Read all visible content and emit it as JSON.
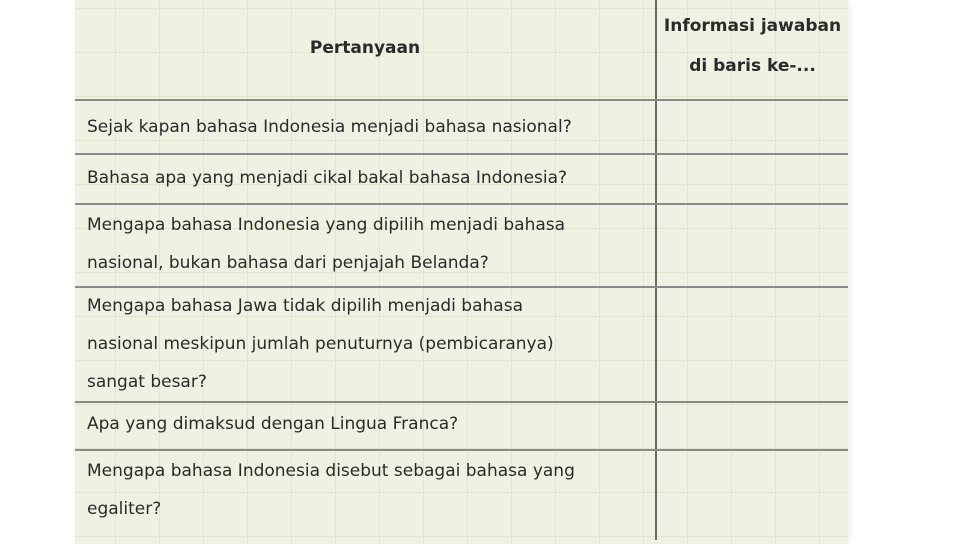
{
  "table": {
    "headers": [
      "Pertanyaan",
      "Informasi jawaban",
      "di baris ke-..."
    ],
    "rows": [
      {
        "lines": [
          "Sejak kapan bahasa Indonesia menjadi bahasa nasional?"
        ]
      },
      {
        "lines": [
          "Bahasa apa yang menjadi cikal bakal bahasa Indonesia?"
        ]
      },
      {
        "lines": [
          "Mengapa bahasa Indonesia yang dipilih menjadi bahasa",
          "nasional, bukan bahasa dari penjajah Belanda?"
        ]
      },
      {
        "lines": [
          "Mengapa bahasa Jawa tidak dipilih menjadi bahasa",
          "nasional meskipun jumlah penuturnya  (pembicaranya)",
          "sangat besar?"
        ]
      },
      {
        "lines": [
          "Apa yang dimaksud dengan Lingua Franca?"
        ]
      },
      {
        "lines": [
          "Mengapa bahasa Indonesia disebut sebagai bahasa yang",
          "egaliter?"
        ]
      }
    ]
  }
}
